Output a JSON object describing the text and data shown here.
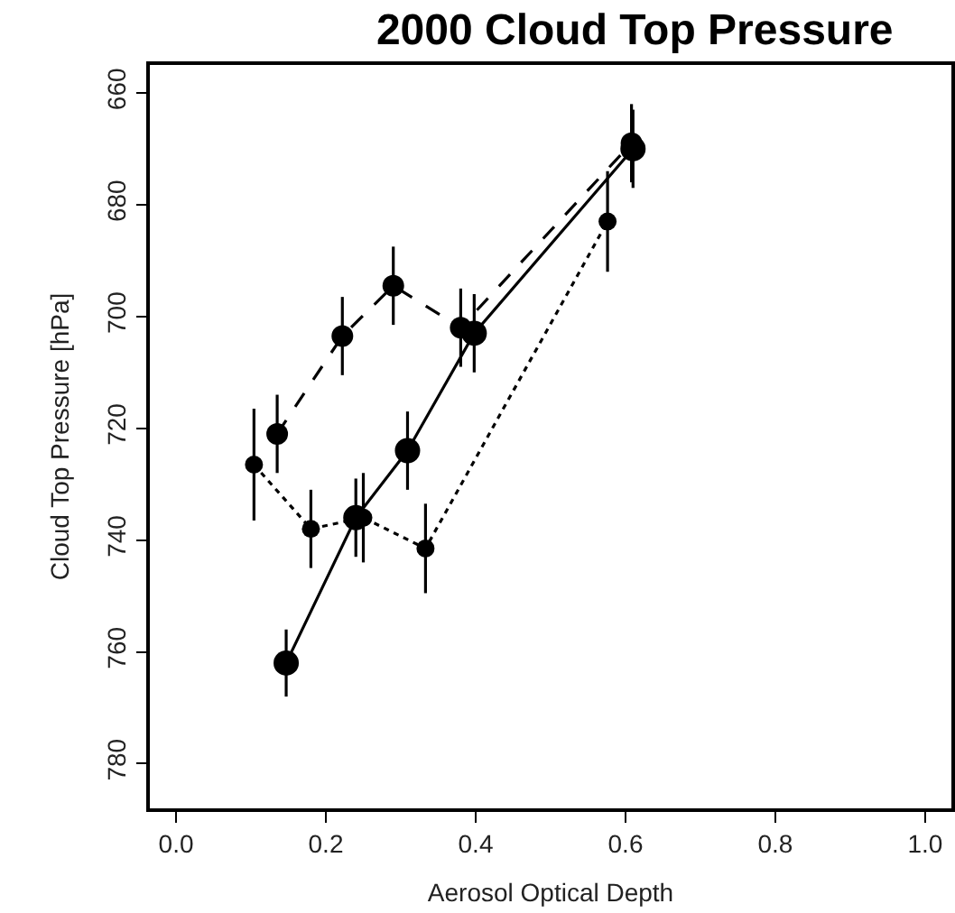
{
  "chart_data": {
    "type": "line",
    "title": "2000 Cloud Top Pressure",
    "xlabel": "Aerosol Optical Depth",
    "ylabel": "Cloud Top Pressure [hPa]",
    "xlim": [
      -0.035,
      1.035
    ],
    "ylim": [
      788,
      655
    ],
    "xticks": [
      {
        "value": 0,
        "label": "0.0"
      },
      0.2,
      0.4,
      0.6,
      0.8,
      {
        "value": 1,
        "label": "1.0"
      }
    ],
    "yticks": [
      660,
      680,
      700,
      720,
      740,
      760,
      780
    ],
    "marker": "circle",
    "series": [
      {
        "color": "#000000",
        "line_style": "solid",
        "x": [
          0.147,
          0.24,
          0.309,
          0.398,
          0.61
        ],
        "values": [
          762,
          736,
          724,
          703,
          670
        ],
        "errors": [
          6,
          7,
          7,
          7,
          7
        ]
      },
      {
        "color": "#000000",
        "line_style": "dashed",
        "x": [
          0.135,
          0.222,
          0.29,
          0.38,
          0.608
        ],
        "values": [
          721,
          703.5,
          694.5,
          702,
          669
        ],
        "errors": [
          7,
          7,
          7,
          7,
          7
        ]
      },
      {
        "color": "#000000",
        "line_style": "dotted",
        "x": [
          0.104,
          0.18,
          0.25,
          0.333,
          0.576
        ],
        "values": [
          726.5,
          738,
          736,
          741.5,
          683
        ],
        "errors": [
          10,
          7,
          8,
          8,
          9
        ]
      }
    ]
  }
}
